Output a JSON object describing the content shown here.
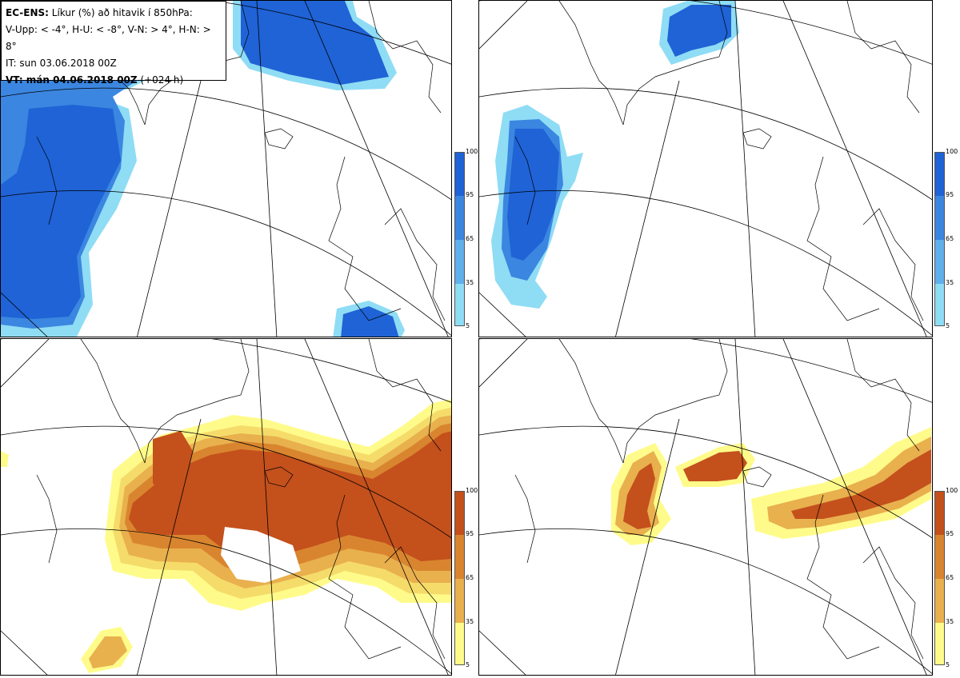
{
  "header": {
    "model": "EC-ENS:",
    "title_rest": "Líkur (%) að hitavik í 850hPa:",
    "legend_line": "V-Upp: < -4°, H-U: < -8°, V-N: > 4°, H-N: > 8°",
    "init_time": "IT: sun 03.06.2018 00Z",
    "valid_label": "VT: mán 04.06.2018 00Z",
    "lead": "(+024 h)"
  },
  "colorbar_cold": {
    "ticks": [
      "100",
      "95",
      "65",
      "35",
      "5"
    ],
    "colors": [
      "#1f63d6",
      "#3b86e0",
      "#5fb0eb",
      "#8fdcf5",
      "#c6f6fb"
    ]
  },
  "colorbar_warm": {
    "ticks": [
      "100",
      "95",
      "65",
      "35",
      "5"
    ],
    "colors": [
      "#c4501c",
      "#d9852f",
      "#e9b04e",
      "#f5dc6a",
      "#fffb8a"
    ]
  },
  "panels": [
    {
      "id": "upper-left",
      "variable": "V-Upp",
      "threshold": "< -4°",
      "palette": "cold"
    },
    {
      "id": "upper-right",
      "variable": "H-U",
      "threshold": "< -8°",
      "palette": "cold"
    },
    {
      "id": "lower-left",
      "variable": "V-N",
      "threshold": "> 4°",
      "palette": "warm"
    },
    {
      "id": "lower-right",
      "variable": "H-N",
      "threshold": "> 8°",
      "palette": "warm"
    }
  ]
}
